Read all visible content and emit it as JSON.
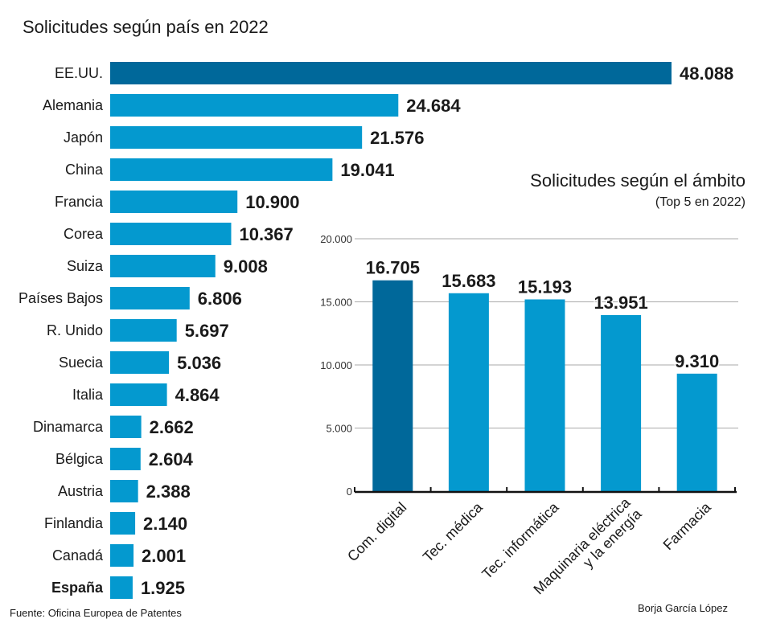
{
  "chart_data": [
    {
      "type": "bar",
      "orientation": "horizontal",
      "title": "Solicitudes según país en 2022",
      "categories": [
        "EE.UU.",
        "Alemania",
        "Japón",
        "China",
        "Francia",
        "Corea",
        "Suiza",
        "Países Bajos",
        "R. Unido",
        "Suecia",
        "Italia",
        "Dinamarca",
        "Bélgica",
        "Austria",
        "Finlandia",
        "Canadá",
        "España"
      ],
      "values": [
        48088,
        24684,
        21576,
        19041,
        10900,
        10367,
        9008,
        6806,
        5697,
        5036,
        4864,
        2662,
        2604,
        2388,
        2140,
        2001,
        1925
      ],
      "value_labels": [
        "48.088",
        "24.684",
        "21.576",
        "19.041",
        "10.900",
        "10.367",
        "9.008",
        "6.806",
        "5.697",
        "5.036",
        "4.864",
        "2.662",
        "2.604",
        "2.388",
        "2.140",
        "2.001",
        "1.925"
      ],
      "highlight_category": "España",
      "colors": {
        "first": "#00689A",
        "default": "#0499CF"
      }
    },
    {
      "type": "bar",
      "title": "Solicitudes según el ámbito",
      "subtitle": "(Top 5 en 2022)",
      "categories": [
        "Com. digital",
        "Tec. médica",
        "Tec. informática",
        "Maquinaria eléctrica\ny la energía",
        "Farmacia"
      ],
      "values": [
        16705,
        15683,
        15193,
        13951,
        9310
      ],
      "value_labels": [
        "16.705",
        "15.683",
        "15.193",
        "13.951",
        "9.310"
      ],
      "ylim": [
        0,
        20000
      ],
      "yticks": [
        0,
        5000,
        10000,
        15000,
        20000
      ],
      "ytick_labels": [
        "0",
        "5.000",
        "10.000",
        "15.000",
        "20.000"
      ],
      "grid": true,
      "colors": {
        "first": "#00689A",
        "default": "#0499CF"
      }
    }
  ],
  "footer": {
    "source": "Fuente: Oficina Europea de Patentes",
    "author": "Borja García López"
  }
}
